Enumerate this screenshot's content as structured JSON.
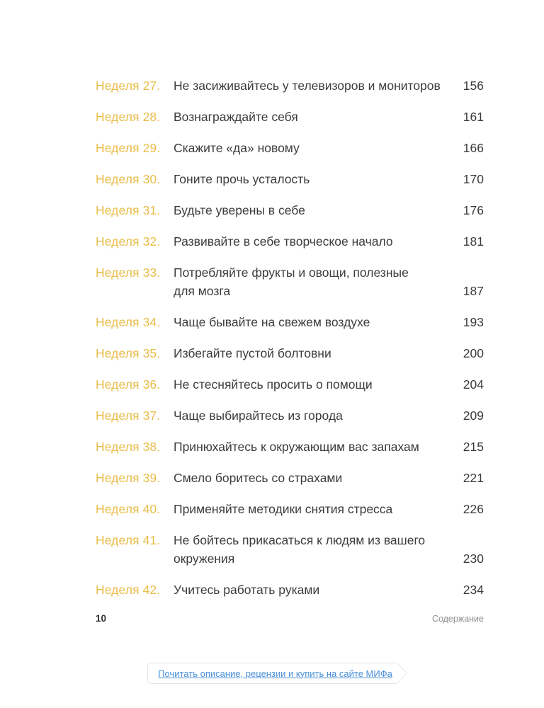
{
  "toc": {
    "entries": [
      {
        "label": "Неделя 27.",
        "title": "Не засиживайтесь у телевизоров и мониторов",
        "page": "156"
      },
      {
        "label": "Неделя 28.",
        "title": "Вознаграждайте себя",
        "page": "161"
      },
      {
        "label": "Неделя 29.",
        "title": "Скажите «да» новому",
        "page": "166"
      },
      {
        "label": "Неделя 30.",
        "title": "Гоните прочь усталость",
        "page": "170"
      },
      {
        "label": "Неделя 31.",
        "title": "Будьте уверены в себе",
        "page": "176"
      },
      {
        "label": "Неделя 32.",
        "title": "Развивайте в себе творческое начало",
        "page": "181"
      },
      {
        "label": "Неделя 33.",
        "title": "Потребляйте фрукты и овощи, полезные\nдля мозга",
        "page": "187"
      },
      {
        "label": "Неделя 34.",
        "title": "Чаще бывайте на свежем воздухе",
        "page": "193"
      },
      {
        "label": "Неделя 35.",
        "title": "Избегайте пустой болтовни",
        "page": "200"
      },
      {
        "label": "Неделя 36.",
        "title": "Не стесняйтесь просить о помощи",
        "page": "204"
      },
      {
        "label": "Неделя 37.",
        "title": "Чаще выбирайтесь из города",
        "page": "209"
      },
      {
        "label": "Неделя 38.",
        "title": "Принюхайтесь к окружающим вас запахам",
        "page": "215"
      },
      {
        "label": "Неделя 39.",
        "title": "Смело боритесь со страхами",
        "page": "221"
      },
      {
        "label": "Неделя 40.",
        "title": "Применяйте методики снятия стресса",
        "page": "226"
      },
      {
        "label": "Неделя 41.",
        "title": "Не бойтесь прикасаться к людям из вашего\nокружения",
        "page": "230"
      },
      {
        "label": "Неделя 42.",
        "title": "Учитесь работать руками",
        "page": "234"
      }
    ]
  },
  "footer": {
    "page_number": "10",
    "section_label": "Содержание"
  },
  "banner": {
    "link_label": "Почитать описание, рецензии и купить на сайте МИФа"
  },
  "colors": {
    "accent_gold": "#e9bd4a",
    "text": "#3c3c3c",
    "muted_gray": "#8d8d8d",
    "link_blue": "#4a90d9",
    "border_gray": "#e4e4e6"
  }
}
